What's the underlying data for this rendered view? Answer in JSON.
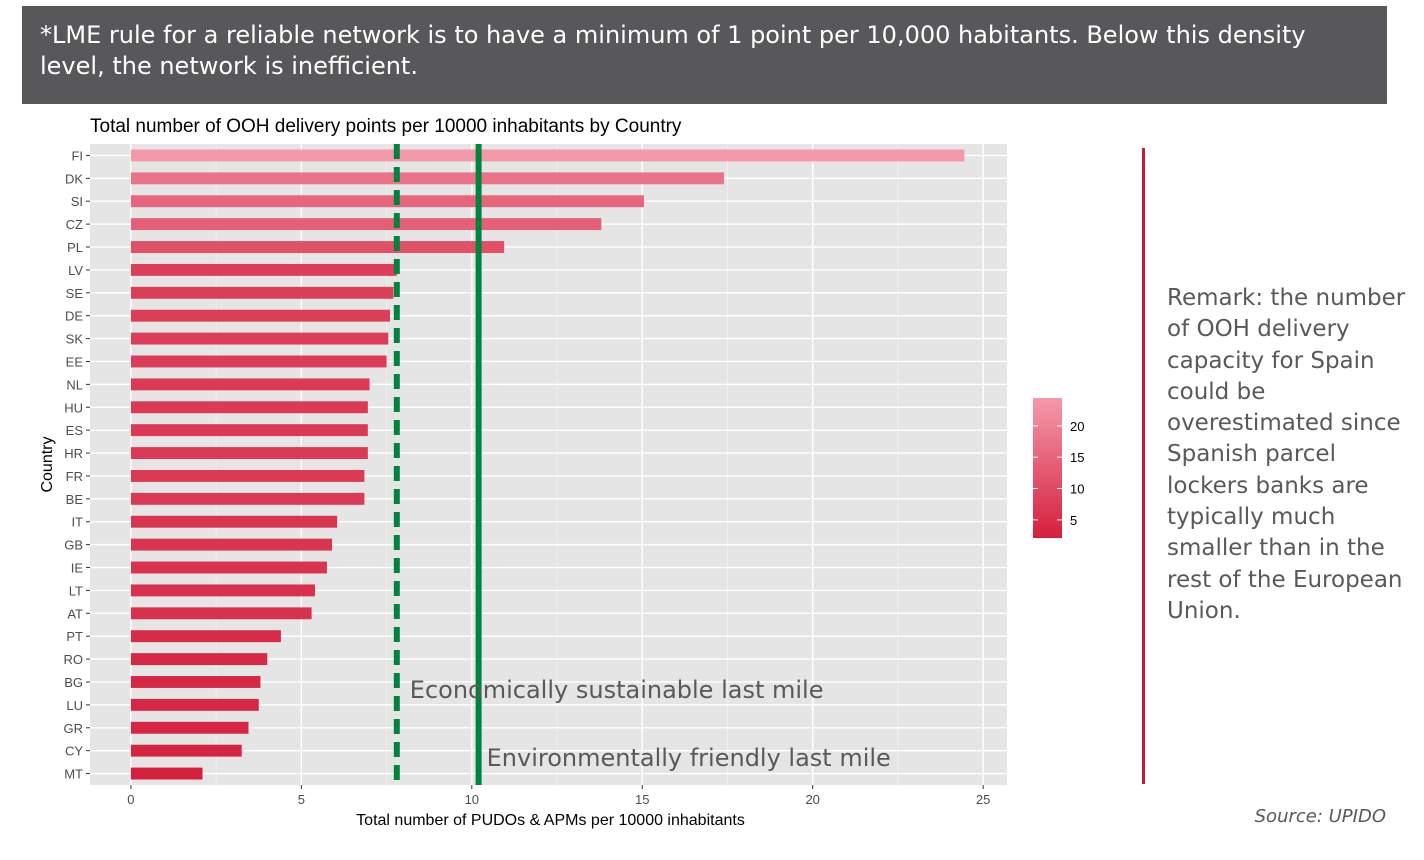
{
  "banner": {
    "text": "*LME rule for a reliable network is to have a minimum of 1 point per 10,000 habitants. Below this density level, the network is inefficient."
  },
  "remark": {
    "text": "Remark: the number of OOH delivery capacity for Spain could be overestimated since Spanish parcel lockers banks are typically much smaller than in the rest of the European Union."
  },
  "source": "Source: UPIDO",
  "chart_data": {
    "type": "bar",
    "orientation": "horizontal",
    "title": "Total number of OOH delivery points per 10000 inhabitants by Country",
    "xlabel": "Total number of PUDOs & APMs per 10000 inhabitants",
    "ylabel": "Country",
    "xlim": [
      -1.2,
      25.7
    ],
    "xticks": [
      0,
      5,
      10,
      15,
      20,
      25
    ],
    "categories": [
      "FI",
      "DK",
      "SI",
      "CZ",
      "PL",
      "LV",
      "SE",
      "DE",
      "SK",
      "EE",
      "NL",
      "HU",
      "ES",
      "HR",
      "FR",
      "BE",
      "IT",
      "GB",
      "IE",
      "LT",
      "AT",
      "PT",
      "RO",
      "BG",
      "LU",
      "GR",
      "CY",
      "MT"
    ],
    "values": [
      24.45,
      17.4,
      15.05,
      13.8,
      10.95,
      7.8,
      7.7,
      7.6,
      7.55,
      7.5,
      7.0,
      6.95,
      6.95,
      6.95,
      6.85,
      6.85,
      6.05,
      5.9,
      5.75,
      5.4,
      5.3,
      4.4,
      4.0,
      3.8,
      3.75,
      3.45,
      3.25,
      2.1
    ],
    "reference_lines": [
      {
        "value": 7.8,
        "style": "dashed",
        "color": "#00843d",
        "label": "Economically sustainable last mile"
      },
      {
        "value": 10.2,
        "style": "solid",
        "color": "#00843d",
        "label": "Environmentally friendly last mile"
      }
    ],
    "legend": {
      "type": "gradient",
      "min": 2.1,
      "max": 24.45,
      "ticks": [
        5,
        10,
        15,
        20
      ],
      "low_color": "#d41f3d",
      "high_color": "#f499aa"
    },
    "background": "#e5e5e5",
    "grid": true
  }
}
